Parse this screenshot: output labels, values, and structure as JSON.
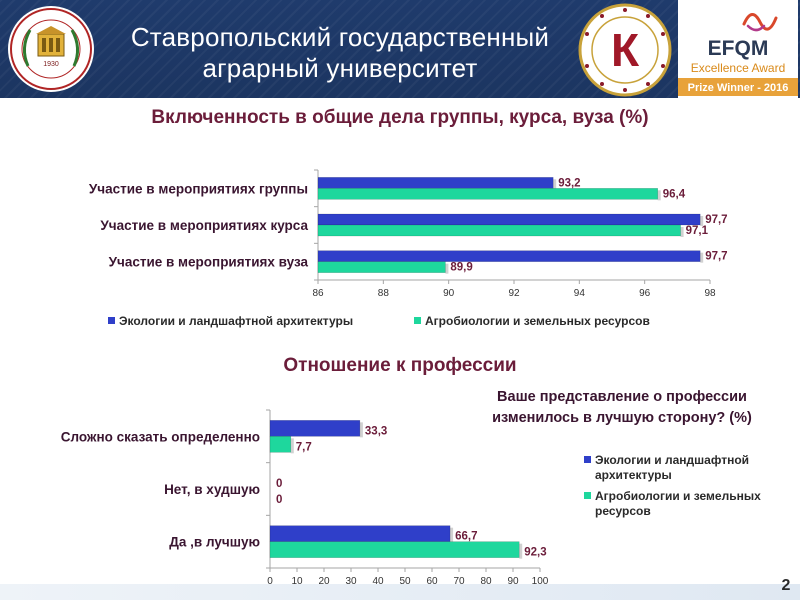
{
  "header": {
    "title_line1": "Ставропольский государственный",
    "title_line2": "аграрный университет",
    "left_logo_year": "1930",
    "seal_letter": "К",
    "efqm_brand": "EFQM",
    "efqm_award": "Excellence Award",
    "efqm_prize": "Prize Winner - 2016"
  },
  "colors": {
    "series1": "#2f3fc9",
    "series2": "#1ed79d",
    "label_value": "#6b1d3a",
    "header_bg": "#1f3b6c",
    "efqm_prize_bg": "#e8a23a"
  },
  "page_number": "2",
  "chart_data": [
    {
      "type": "bar",
      "orientation": "horizontal",
      "title": "Включенность в общие дела группы, курса, вуза (%)",
      "categories": [
        "Участие в мероприятиях группы",
        "Участие в мероприятиях курса",
        "Участие в мероприятиях вуза"
      ],
      "series": [
        {
          "name": "Экологии и ландшафтной архитектуры",
          "values": [
            93.2,
            97.7,
            97.7
          ],
          "labels": [
            "93,2",
            "97,7",
            "97,7"
          ]
        },
        {
          "name": "Агробиологии и земельных ресурсов",
          "values": [
            96.4,
            97.1,
            89.9
          ],
          "labels": [
            "96,4",
            "97,1",
            "89,9"
          ]
        }
      ],
      "xlim": [
        86,
        98
      ],
      "ticks": [
        "86",
        "88",
        "90",
        "92",
        "94",
        "96",
        "98"
      ],
      "grid": false,
      "legend_position": "bottom"
    },
    {
      "type": "bar",
      "orientation": "horizontal",
      "title": "Отношение к профессии",
      "subtitle_line1": "Ваше представление о профессии",
      "subtitle_line2": "изменилось в лучшую сторону? (%)",
      "categories": [
        "Сложно сказать определенно",
        "Нет, в худшую",
        "Да ,в лучшую"
      ],
      "series": [
        {
          "name_line1": "Экологии и ландшафтной",
          "name_line2": "архитектуры",
          "values": [
            33.3,
            0,
            66.7
          ],
          "labels": [
            "33,3",
            "0",
            "66,7"
          ]
        },
        {
          "name_line1": "Агробиологии и земельных",
          "name_line2": "ресурсов",
          "values": [
            7.7,
            0,
            92.3
          ],
          "labels": [
            "7,7",
            "0",
            "92,3"
          ]
        }
      ],
      "xlim": [
        0,
        100
      ],
      "ticks": [
        "0",
        "10",
        "20",
        "30",
        "40",
        "50",
        "60",
        "70",
        "80",
        "90",
        "100"
      ],
      "grid": false,
      "legend_position": "right"
    }
  ]
}
